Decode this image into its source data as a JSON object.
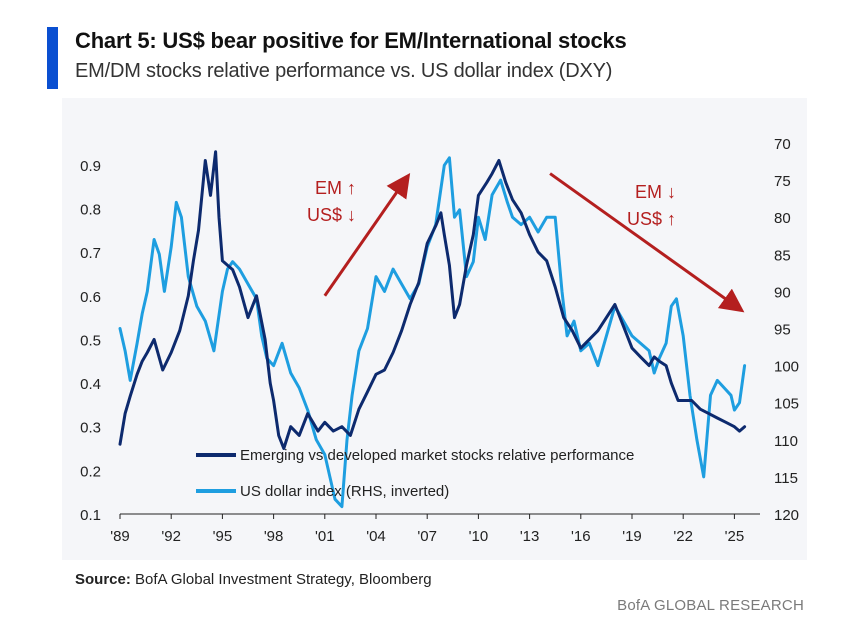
{
  "header": {
    "title": "Chart 5: US$ bear positive for EM/International stocks",
    "subtitle": "EM/DM stocks relative performance vs. US dollar index (DXY)"
  },
  "colors": {
    "accent": "#0a4fd1",
    "em_series": "#0d2a6e",
    "dxy_series": "#1e9ee0",
    "arrow": "#b41f1f"
  },
  "chart_data": {
    "type": "line",
    "title": "EM/DM stocks relative performance vs. US dollar index (DXY)",
    "x_tick_labels": [
      "'89",
      "'92",
      "'95",
      "'98",
      "'01",
      "'04",
      "'07",
      "'10",
      "'13",
      "'16",
      "'19",
      "'22",
      "'25"
    ],
    "x_ticks": [
      1989,
      1992,
      1995,
      1998,
      2001,
      2004,
      2007,
      2010,
      2013,
      2016,
      2019,
      2022,
      2025
    ],
    "xlim": [
      1989,
      2026.5
    ],
    "y_left": {
      "ticks": [
        0.1,
        0.2,
        0.3,
        0.4,
        0.5,
        0.6,
        0.7,
        0.8,
        0.9
      ],
      "tick_labels": [
        "0.1",
        "0.2",
        "0.3",
        "0.4",
        "0.5",
        "0.6",
        "0.7",
        "0.8",
        "0.9"
      ],
      "lim": [
        0.1,
        0.95
      ]
    },
    "y_right": {
      "ticks": [
        70,
        75,
        80,
        85,
        90,
        95,
        100,
        105,
        110,
        115,
        120
      ],
      "tick_labels": [
        "70",
        "75",
        "80",
        "85",
        "90",
        "95",
        "100",
        "105",
        "110",
        "115",
        "120"
      ],
      "lim": [
        70,
        120
      ],
      "inverted": true
    },
    "legend_position": "bottom-center",
    "series": [
      {
        "name": "Emerging vs developed market stocks relative performance",
        "axis": "left",
        "x": [
          1989.0,
          1989.3,
          1989.6,
          1990.0,
          1990.3,
          1990.6,
          1991.0,
          1991.5,
          1992.0,
          1992.5,
          1993.0,
          1993.3,
          1993.6,
          1994.0,
          1994.3,
          1994.6,
          1994.8,
          1995.0,
          1995.3,
          1995.6,
          1996.0,
          1996.5,
          1997.0,
          1997.5,
          1997.8,
          1998.0,
          1998.3,
          1998.6,
          1999.0,
          1999.5,
          2000.0,
          2000.3,
          2000.6,
          2001.0,
          2001.5,
          2002.0,
          2002.5,
          2003.0,
          2003.5,
          2004.0,
          2004.5,
          2005.0,
          2005.5,
          2006.0,
          2006.5,
          2007.0,
          2007.5,
          2007.8,
          2008.0,
          2008.3,
          2008.6,
          2008.9,
          2009.3,
          2009.7,
          2010.0,
          2010.5,
          2010.8,
          2011.2,
          2011.6,
          2012.0,
          2012.5,
          2013.0,
          2013.5,
          2014.0,
          2014.5,
          2015.0,
          2015.5,
          2016.0,
          2016.5,
          2017.0,
          2017.5,
          2018.0,
          2018.5,
          2019.0,
          2019.5,
          2020.0,
          2020.3,
          2020.6,
          2021.0,
          2021.3,
          2021.7,
          2022.0,
          2022.5,
          2023.0,
          2023.5,
          2024.0,
          2024.5,
          2025.0,
          2025.3,
          2025.6
        ],
        "values": [
          0.26,
          0.33,
          0.37,
          0.42,
          0.45,
          0.47,
          0.5,
          0.43,
          0.47,
          0.52,
          0.6,
          0.68,
          0.75,
          0.91,
          0.83,
          0.93,
          0.78,
          0.68,
          0.67,
          0.66,
          0.62,
          0.55,
          0.6,
          0.5,
          0.4,
          0.36,
          0.28,
          0.25,
          0.3,
          0.28,
          0.33,
          0.31,
          0.29,
          0.31,
          0.29,
          0.3,
          0.28,
          0.34,
          0.38,
          0.42,
          0.43,
          0.47,
          0.52,
          0.58,
          0.63,
          0.72,
          0.76,
          0.79,
          0.74,
          0.67,
          0.55,
          0.58,
          0.67,
          0.74,
          0.83,
          0.86,
          0.88,
          0.91,
          0.86,
          0.82,
          0.79,
          0.74,
          0.7,
          0.68,
          0.62,
          0.55,
          0.52,
          0.48,
          0.5,
          0.52,
          0.55,
          0.58,
          0.53,
          0.48,
          0.46,
          0.44,
          0.46,
          0.45,
          0.44,
          0.4,
          0.36,
          0.36,
          0.36,
          0.34,
          0.33,
          0.32,
          0.31,
          0.3,
          0.29,
          0.3
        ]
      },
      {
        "name": "US dollar index (RHS, inverted)",
        "axis": "right",
        "x": [
          1989.0,
          1989.3,
          1989.6,
          1990.0,
          1990.3,
          1990.6,
          1991.0,
          1991.3,
          1991.6,
          1992.0,
          1992.3,
          1992.6,
          1993.0,
          1993.5,
          1994.0,
          1994.5,
          1995.0,
          1995.3,
          1995.6,
          1996.0,
          1996.5,
          1997.0,
          1997.3,
          1997.6,
          1998.0,
          1998.5,
          1999.0,
          1999.5,
          2000.0,
          2000.5,
          2001.0,
          2001.3,
          2001.6,
          2002.0,
          2002.3,
          2002.6,
          2003.0,
          2003.5,
          2004.0,
          2004.5,
          2005.0,
          2005.5,
          2006.0,
          2006.5,
          2007.0,
          2007.5,
          2008.0,
          2008.3,
          2008.6,
          2008.9,
          2009.3,
          2009.7,
          2010.0,
          2010.4,
          2010.8,
          2011.3,
          2011.7,
          2012.0,
          2012.5,
          2013.0,
          2013.5,
          2014.0,
          2014.5,
          2014.9,
          2015.2,
          2015.6,
          2016.0,
          2016.5,
          2017.0,
          2017.5,
          2018.0,
          2018.5,
          2019.0,
          2019.5,
          2020.0,
          2020.3,
          2020.6,
          2021.0,
          2021.3,
          2021.6,
          2022.0,
          2022.4,
          2022.8,
          2023.2,
          2023.6,
          2024.0,
          2024.4,
          2024.8,
          2025.0,
          2025.3,
          2025.6
        ],
        "values": [
          95,
          98,
          102,
          97,
          93,
          90,
          83,
          85,
          90,
          84,
          78,
          80,
          88,
          92,
          94,
          98,
          90,
          87,
          86,
          87,
          89,
          91,
          96,
          99,
          100,
          97,
          101,
          103,
          106,
          110,
          112,
          115,
          118,
          119,
          110,
          104,
          98,
          95,
          88,
          90,
          87,
          89,
          91,
          89,
          84,
          81,
          73,
          72,
          80,
          79,
          88,
          86,
          80,
          83,
          77,
          75,
          78,
          80,
          81,
          80,
          82,
          80,
          80,
          90,
          96,
          94,
          98,
          97,
          100,
          96,
          92,
          94,
          96,
          97,
          98,
          101,
          99,
          97,
          92,
          91,
          96,
          104,
          110,
          115,
          104,
          102,
          103,
          104,
          106,
          105,
          100
        ]
      }
    ],
    "annotations": [
      {
        "text_line1": "EM ↑",
        "text_line2": "US$ ↓",
        "arrow": {
          "x1": 2001.0,
          "y1": 0.6,
          "x2": 2005.8,
          "y2": 0.87
        }
      },
      {
        "text_line1": "EM ↓",
        "text_line2": "US$ ↑",
        "arrow": {
          "x1": 2014.2,
          "y1": 0.88,
          "x2": 2025.3,
          "y2": 0.57
        }
      }
    ]
  },
  "footer": {
    "source_label": "Source:",
    "source_text": " BofA Global Investment Strategy, Bloomberg",
    "brand": "BofA GLOBAL RESEARCH"
  }
}
